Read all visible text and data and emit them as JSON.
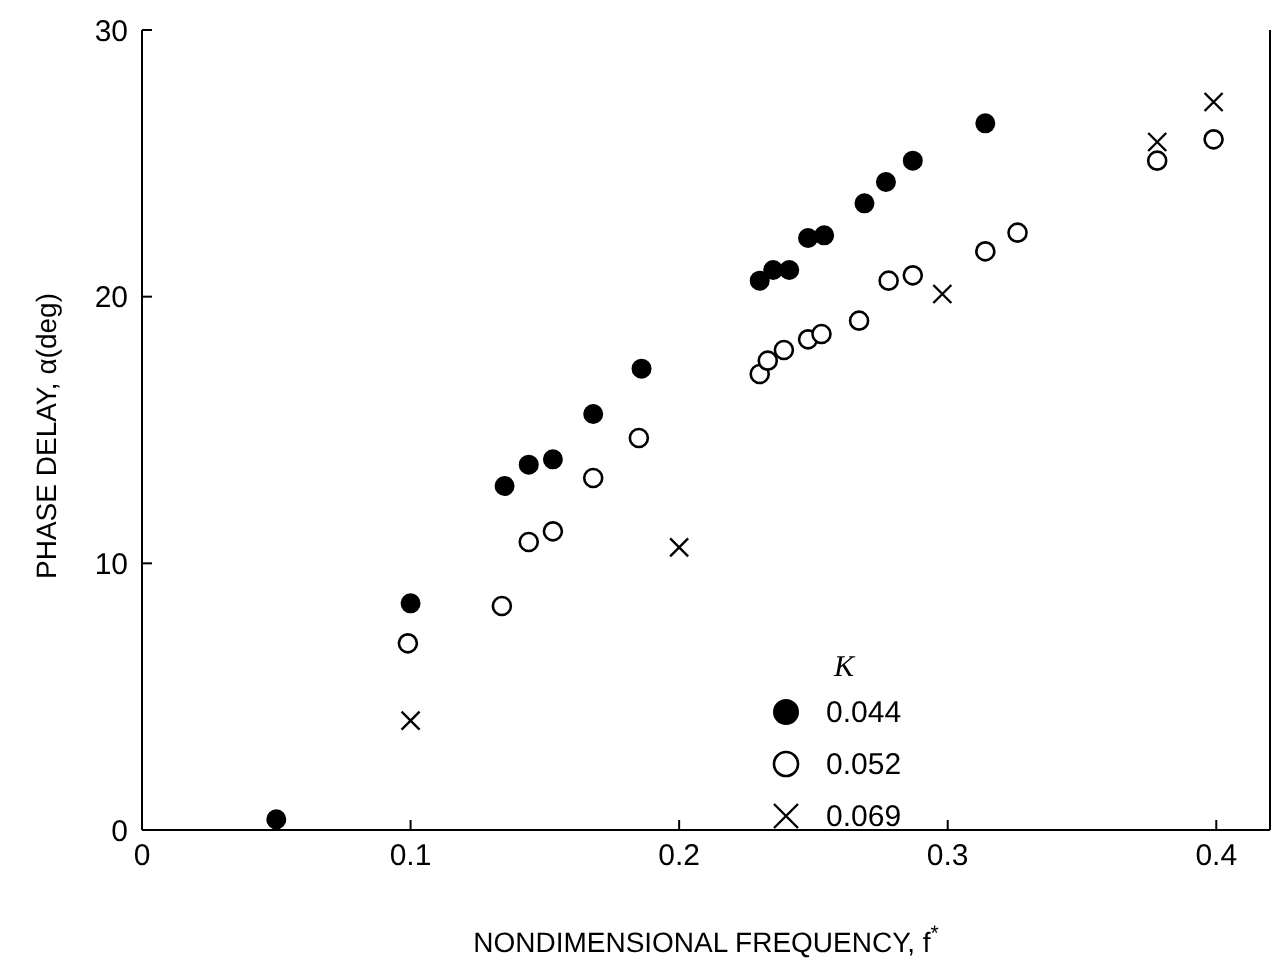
{
  "chart_data": {
    "type": "scatter",
    "xlabel": "NONDIMENSIONAL FREQUENCY, f$^{*}$",
    "ylabel": "PHASE DELAY, α(deg)",
    "legend_title": "K",
    "xlim": [
      0,
      0.42
    ],
    "xticks": [
      0,
      0.1,
      0.2,
      0.3,
      0.4
    ],
    "ylim": [
      0,
      30
    ],
    "yticks": [
      0,
      10,
      20,
      30
    ],
    "grid": false,
    "legend": "bottom right",
    "series": [
      {
        "name": "0.044",
        "color": "#000000",
        "marker": "circle",
        "x": [
          0.05,
          0.1,
          0.135,
          0.144,
          0.153,
          0.168,
          0.186,
          0.23,
          0.235,
          0.241,
          0.248,
          0.254,
          0.269,
          0.277,
          0.287,
          0.314
        ],
        "values": [
          0.4,
          8.5,
          12.9,
          13.7,
          13.9,
          15.6,
          17.3,
          20.6,
          21.0,
          21.0,
          22.2,
          22.3,
          23.5,
          24.3,
          25.1,
          26.5
        ]
      },
      {
        "name": "0.052",
        "color": "#000000",
        "marker": "circle-open",
        "x": [
          0.099,
          0.134,
          0.144,
          0.153,
          0.168,
          0.185,
          0.23,
          0.233,
          0.239,
          0.248,
          0.253,
          0.267,
          0.278,
          0.287,
          0.314,
          0.326,
          0.378,
          0.399
        ],
        "values": [
          7.0,
          8.4,
          10.8,
          11.2,
          13.2,
          14.7,
          17.1,
          17.6,
          18.0,
          18.4,
          18.6,
          19.1,
          20.6,
          20.8,
          21.7,
          22.4,
          25.1,
          25.9
        ]
      },
      {
        "name": "0.069",
        "color": "#000000",
        "marker": "cross",
        "x": [
          0.05,
          0.1,
          0.2,
          0.298,
          0.378,
          0.399
        ],
        "values": [
          0,
          4.1,
          10.6,
          20.1,
          25.8,
          27.3
        ]
      }
    ]
  }
}
